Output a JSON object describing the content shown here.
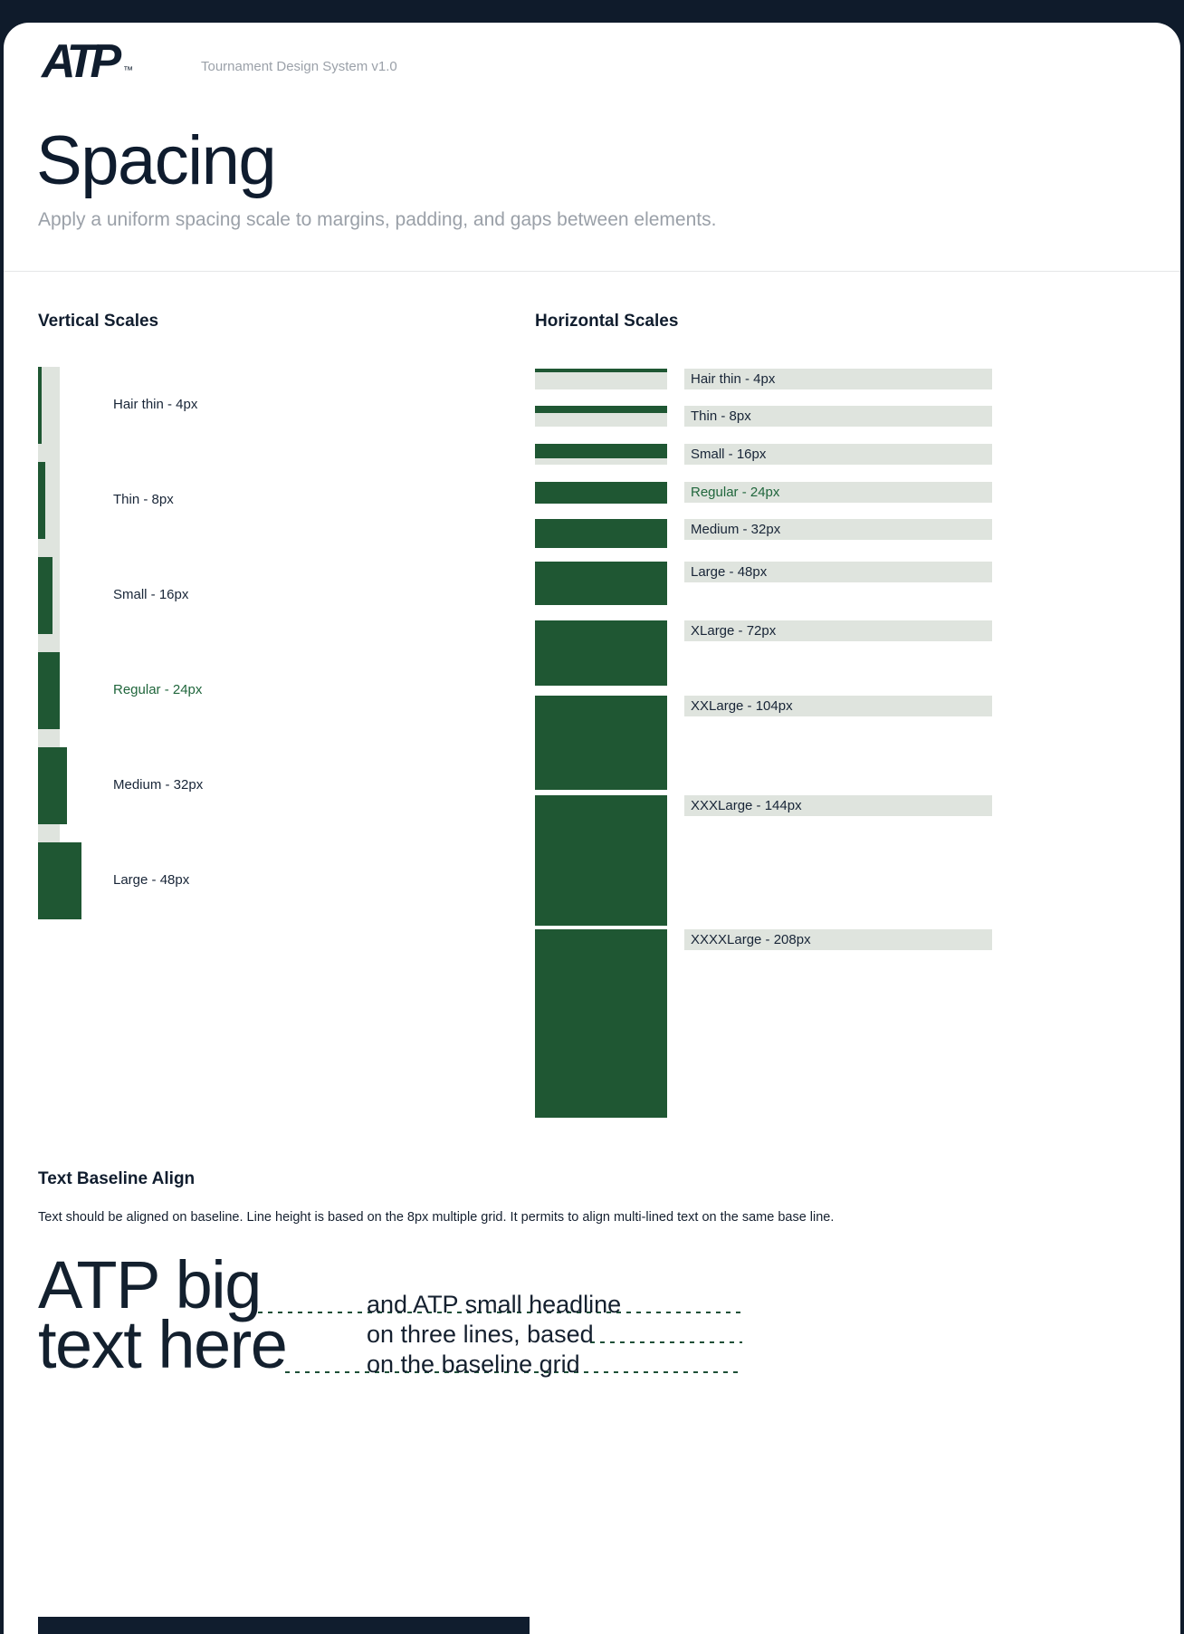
{
  "meta": {
    "brand": "ATP",
    "trademark": "™",
    "system_label": "Tournament Design System v1.0"
  },
  "header": {
    "title": "Spacing",
    "subtitle": "Apply a uniform spacing scale to margins, padding, and gaps between elements."
  },
  "colors": {
    "page_bg": "#0f1b2b",
    "card_bg": "#ffffff",
    "accent_green": "#1f5733",
    "highlight_text_green": "#20663c",
    "track_gray_green": "#dfe4de",
    "navy_text": "#15202f",
    "muted_gray": "#9ba1a9"
  },
  "vertical_scales": {
    "heading": "Vertical Scales",
    "items": [
      {
        "label": "Hair thin - 4px",
        "value": 4,
        "highlight": false
      },
      {
        "label": "Thin - 8px",
        "value": 8,
        "highlight": false
      },
      {
        "label": "Small - 16px",
        "value": 16,
        "highlight": false
      },
      {
        "label": "Regular - 24px",
        "value": 24,
        "highlight": true
      },
      {
        "label": "Medium - 32px",
        "value": 32,
        "highlight": false
      },
      {
        "label": "Large - 48px",
        "value": 48,
        "highlight": false
      }
    ]
  },
  "horizontal_scales": {
    "heading": "Horizontal Scales",
    "items": [
      {
        "label": "Hair thin - 4px",
        "value": 4,
        "highlight": false
      },
      {
        "label": "Thin - 8px",
        "value": 8,
        "highlight": false
      },
      {
        "label": "Small - 16px",
        "value": 16,
        "highlight": false
      },
      {
        "label": "Regular - 24px",
        "value": 24,
        "highlight": true
      },
      {
        "label": "Medium - 32px",
        "value": 32,
        "highlight": false
      },
      {
        "label": "Large - 48px",
        "value": 48,
        "highlight": false
      },
      {
        "label": "XLarge - 72px",
        "value": 72,
        "highlight": false
      },
      {
        "label": "XXLarge - 104px",
        "value": 104,
        "highlight": false
      },
      {
        "label": "XXXLarge - 144px",
        "value": 144,
        "highlight": false
      },
      {
        "label": "XXXXLarge - 208px",
        "value": 208,
        "highlight": false
      }
    ]
  },
  "baseline": {
    "heading": "Text Baseline Align",
    "description": "Text should be aligned on baseline. Line height is based on the 8px multiple grid. It permits to align multi-lined text on the same base line.",
    "big_text_lines": [
      "ATP big",
      "text here"
    ],
    "small_text_lines": [
      "and ATP small headline",
      "on three lines, based",
      "on the baseline grid"
    ]
  }
}
